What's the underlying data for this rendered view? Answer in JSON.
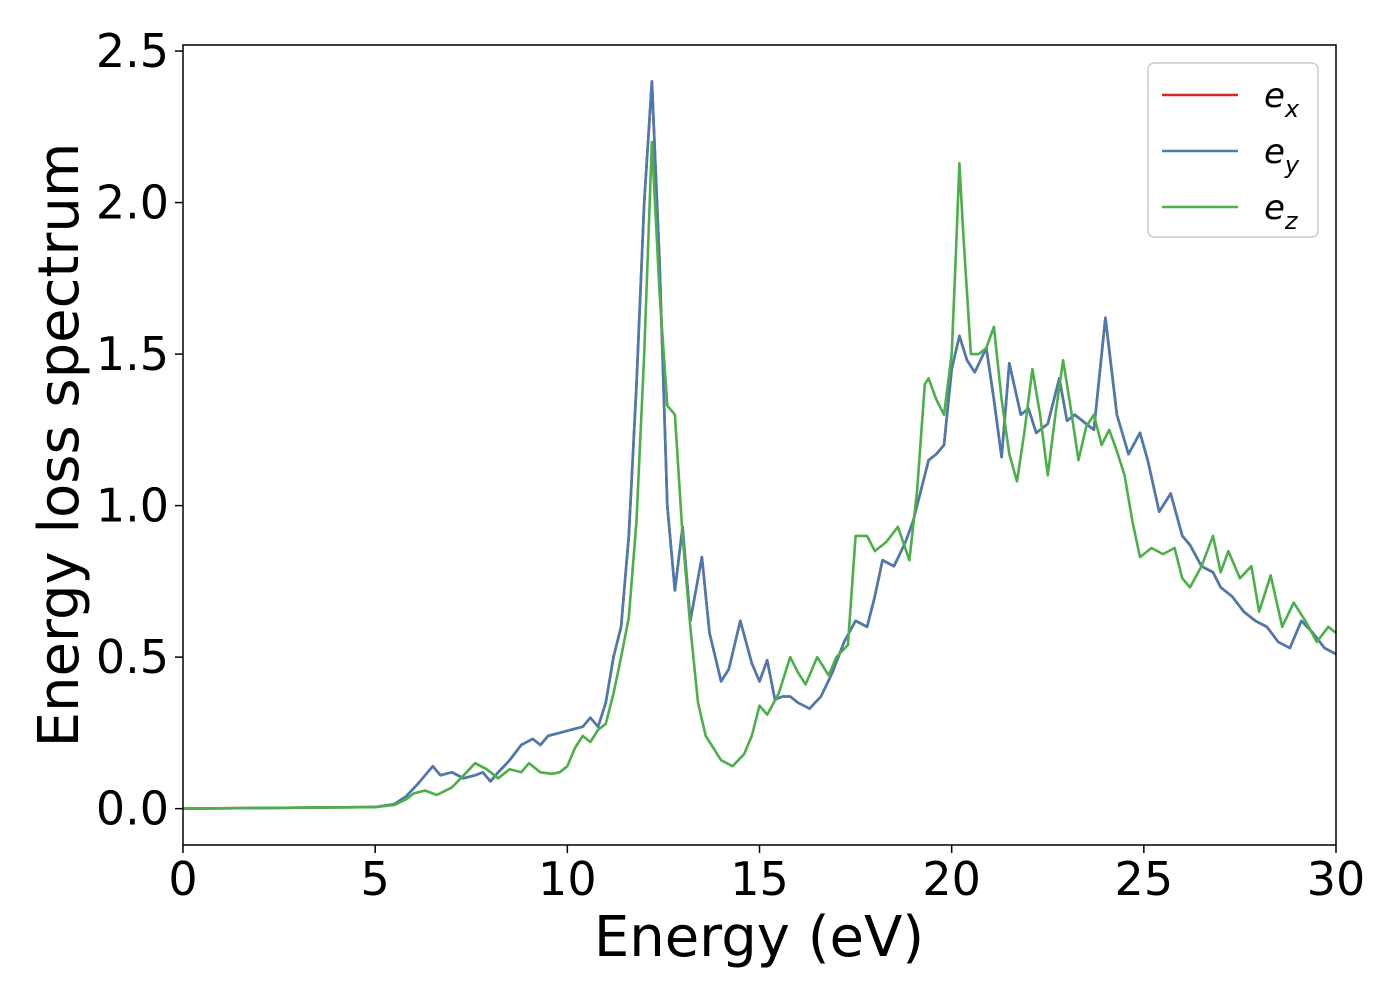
{
  "chart_data": {
    "type": "line",
    "title": "",
    "xlabel": "Energy (eV)",
    "ylabel": "Energy loss spectrum",
    "xlim": [
      0,
      30
    ],
    "ylim": [
      -0.12,
      2.52
    ],
    "xticks": [
      0,
      5,
      10,
      15,
      20,
      25,
      30
    ],
    "xtick_labels": [
      "0",
      "5",
      "10",
      "15",
      "20",
      "25",
      "30"
    ],
    "yticks": [
      0.0,
      0.5,
      1.0,
      1.5,
      2.0,
      2.5
    ],
    "ytick_labels": [
      "0.0",
      "0.5",
      "1.0",
      "1.5",
      "2.0",
      "2.5"
    ],
    "grid": false,
    "legend_position": "top-right",
    "series": [
      {
        "name": "e_x",
        "legend_base": "e",
        "legend_sub": "x",
        "color": "#d62728",
        "x": [
          0,
          3,
          5,
          5.5,
          5.8,
          6.1,
          6.3,
          6.5,
          6.7,
          7.0,
          7.3,
          7.6,
          7.8,
          8.0,
          8.2,
          8.5,
          8.8,
          9.1,
          9.3,
          9.5,
          9.8,
          10.1,
          10.4,
          10.6,
          10.8,
          11.0,
          11.2,
          11.4,
          11.6,
          11.8,
          12.0,
          12.2,
          12.4,
          12.6,
          12.8,
          13.0,
          13.2,
          13.5,
          13.7,
          14.0,
          14.2,
          14.5,
          14.8,
          15.0,
          15.2,
          15.4,
          15.6,
          15.8,
          16.0,
          16.3,
          16.6,
          16.9,
          17.2,
          17.5,
          17.8,
          18.0,
          18.2,
          18.5,
          18.8,
          19.0,
          19.2,
          19.4,
          19.6,
          19.8,
          20.0,
          20.2,
          20.4,
          20.6,
          20.9,
          21.1,
          21.3,
          21.5,
          21.8,
          22.0,
          22.2,
          22.5,
          22.8,
          23.0,
          23.2,
          23.5,
          23.7,
          24.0,
          24.3,
          24.6,
          24.9,
          25.1,
          25.4,
          25.7,
          26.0,
          26.2,
          26.5,
          26.8,
          27.0,
          27.3,
          27.6,
          27.9,
          28.2,
          28.5,
          28.8,
          29.1,
          29.4,
          29.7,
          30.0
        ],
        "y": [
          0.0,
          0.003,
          0.005,
          0.015,
          0.04,
          0.08,
          0.11,
          0.14,
          0.11,
          0.12,
          0.1,
          0.11,
          0.12,
          0.09,
          0.12,
          0.16,
          0.21,
          0.23,
          0.21,
          0.24,
          0.25,
          0.26,
          0.27,
          0.3,
          0.27,
          0.35,
          0.5,
          0.6,
          0.9,
          1.4,
          2.0,
          2.4,
          1.8,
          1.0,
          0.72,
          0.93,
          0.62,
          0.83,
          0.58,
          0.42,
          0.46,
          0.62,
          0.48,
          0.42,
          0.49,
          0.36,
          0.37,
          0.37,
          0.35,
          0.33,
          0.37,
          0.45,
          0.55,
          0.62,
          0.6,
          0.7,
          0.82,
          0.8,
          0.88,
          0.95,
          1.05,
          1.15,
          1.17,
          1.2,
          1.45,
          1.56,
          1.48,
          1.44,
          1.52,
          1.35,
          1.16,
          1.47,
          1.3,
          1.32,
          1.24,
          1.27,
          1.42,
          1.28,
          1.3,
          1.27,
          1.25,
          1.62,
          1.3,
          1.17,
          1.24,
          1.15,
          0.98,
          1.04,
          0.9,
          0.87,
          0.8,
          0.78,
          0.73,
          0.7,
          0.65,
          0.62,
          0.6,
          0.55,
          0.53,
          0.62,
          0.58,
          0.53,
          0.51
        ]
      },
      {
        "name": "e_y",
        "legend_base": "e",
        "legend_sub": "y",
        "color": "#4a7bb0",
        "x": [
          0,
          3,
          5,
          5.5,
          5.8,
          6.1,
          6.3,
          6.5,
          6.7,
          7.0,
          7.3,
          7.6,
          7.8,
          8.0,
          8.2,
          8.5,
          8.8,
          9.1,
          9.3,
          9.5,
          9.8,
          10.1,
          10.4,
          10.6,
          10.8,
          11.0,
          11.2,
          11.4,
          11.6,
          11.8,
          12.0,
          12.2,
          12.4,
          12.6,
          12.8,
          13.0,
          13.2,
          13.5,
          13.7,
          14.0,
          14.2,
          14.5,
          14.8,
          15.0,
          15.2,
          15.4,
          15.6,
          15.8,
          16.0,
          16.3,
          16.6,
          16.9,
          17.2,
          17.5,
          17.8,
          18.0,
          18.2,
          18.5,
          18.8,
          19.0,
          19.2,
          19.4,
          19.6,
          19.8,
          20.0,
          20.2,
          20.4,
          20.6,
          20.9,
          21.1,
          21.3,
          21.5,
          21.8,
          22.0,
          22.2,
          22.5,
          22.8,
          23.0,
          23.2,
          23.5,
          23.7,
          24.0,
          24.3,
          24.6,
          24.9,
          25.1,
          25.4,
          25.7,
          26.0,
          26.2,
          26.5,
          26.8,
          27.0,
          27.3,
          27.6,
          27.9,
          28.2,
          28.5,
          28.8,
          29.1,
          29.4,
          29.7,
          30.0
        ],
        "y": [
          0.0,
          0.003,
          0.005,
          0.015,
          0.04,
          0.08,
          0.11,
          0.14,
          0.11,
          0.12,
          0.1,
          0.11,
          0.12,
          0.09,
          0.12,
          0.16,
          0.21,
          0.23,
          0.21,
          0.24,
          0.25,
          0.26,
          0.27,
          0.3,
          0.27,
          0.35,
          0.5,
          0.6,
          0.9,
          1.4,
          2.0,
          2.4,
          1.8,
          1.0,
          0.72,
          0.93,
          0.62,
          0.83,
          0.58,
          0.42,
          0.46,
          0.62,
          0.48,
          0.42,
          0.49,
          0.36,
          0.37,
          0.37,
          0.35,
          0.33,
          0.37,
          0.45,
          0.55,
          0.62,
          0.6,
          0.7,
          0.82,
          0.8,
          0.88,
          0.95,
          1.05,
          1.15,
          1.17,
          1.2,
          1.45,
          1.56,
          1.48,
          1.44,
          1.52,
          1.35,
          1.16,
          1.47,
          1.3,
          1.32,
          1.24,
          1.27,
          1.42,
          1.28,
          1.3,
          1.27,
          1.25,
          1.62,
          1.3,
          1.17,
          1.24,
          1.15,
          0.98,
          1.04,
          0.9,
          0.87,
          0.8,
          0.78,
          0.73,
          0.7,
          0.65,
          0.62,
          0.6,
          0.55,
          0.53,
          0.62,
          0.58,
          0.53,
          0.51
        ]
      },
      {
        "name": "e_z",
        "legend_base": "e",
        "legend_sub": "z",
        "color": "#4daf4a",
        "x": [
          0,
          3,
          5,
          5.5,
          5.8,
          6.0,
          6.3,
          6.6,
          7.0,
          7.3,
          7.6,
          7.9,
          8.2,
          8.5,
          8.8,
          9.0,
          9.3,
          9.6,
          9.8,
          10.0,
          10.2,
          10.4,
          10.6,
          10.8,
          11.0,
          11.2,
          11.4,
          11.6,
          11.8,
          12.0,
          12.2,
          12.4,
          12.6,
          12.8,
          13.0,
          13.2,
          13.4,
          13.6,
          13.8,
          14.0,
          14.3,
          14.6,
          14.8,
          15.0,
          15.2,
          15.5,
          15.8,
          16.0,
          16.2,
          16.5,
          16.8,
          17.0,
          17.3,
          17.5,
          17.8,
          18.0,
          18.3,
          18.6,
          18.9,
          19.1,
          19.3,
          19.4,
          19.6,
          19.8,
          20.0,
          20.1,
          20.2,
          20.3,
          20.5,
          20.7,
          20.9,
          21.1,
          21.3,
          21.5,
          21.7,
          21.9,
          22.1,
          22.3,
          22.5,
          22.7,
          22.9,
          23.1,
          23.3,
          23.5,
          23.7,
          23.9,
          24.1,
          24.3,
          24.5,
          24.7,
          24.9,
          25.2,
          25.5,
          25.8,
          26.0,
          26.2,
          26.5,
          26.8,
          27.0,
          27.2,
          27.5,
          27.8,
          28.0,
          28.3,
          28.6,
          28.9,
          29.2,
          29.5,
          29.8,
          30.0
        ],
        "y": [
          0.0,
          0.003,
          0.005,
          0.012,
          0.03,
          0.05,
          0.06,
          0.045,
          0.07,
          0.11,
          0.15,
          0.13,
          0.1,
          0.13,
          0.12,
          0.15,
          0.12,
          0.115,
          0.12,
          0.14,
          0.2,
          0.24,
          0.22,
          0.26,
          0.28,
          0.38,
          0.5,
          0.63,
          0.95,
          1.5,
          2.2,
          1.7,
          1.33,
          1.3,
          0.9,
          0.6,
          0.35,
          0.24,
          0.2,
          0.16,
          0.14,
          0.18,
          0.24,
          0.34,
          0.31,
          0.38,
          0.5,
          0.45,
          0.41,
          0.5,
          0.44,
          0.5,
          0.54,
          0.9,
          0.9,
          0.85,
          0.88,
          0.93,
          0.82,
          1.05,
          1.4,
          1.42,
          1.35,
          1.3,
          1.5,
          1.8,
          2.13,
          1.9,
          1.5,
          1.5,
          1.52,
          1.59,
          1.35,
          1.17,
          1.08,
          1.25,
          1.45,
          1.3,
          1.1,
          1.3,
          1.48,
          1.32,
          1.15,
          1.26,
          1.3,
          1.2,
          1.25,
          1.18,
          1.1,
          0.95,
          0.83,
          0.86,
          0.84,
          0.86,
          0.76,
          0.73,
          0.8,
          0.9,
          0.78,
          0.85,
          0.76,
          0.8,
          0.65,
          0.77,
          0.6,
          0.68,
          0.62,
          0.55,
          0.6,
          0.58
        ]
      }
    ]
  }
}
